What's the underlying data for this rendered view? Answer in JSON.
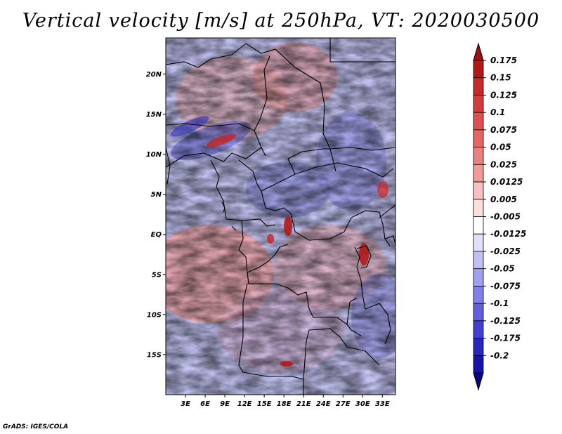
{
  "title": "Vertical velocity [m/s] at 250hPa, VT: 2020030500",
  "credit": "GrADS: IGES/COLA",
  "chart_data": {
    "type": "heatmap",
    "title": "Vertical velocity [m/s] at 250hPa, VT: 2020030500",
    "variable": "Vertical velocity",
    "units": "m/s",
    "level": "250hPa",
    "valid_time": "2020030500",
    "xlabel": "",
    "ylabel": "",
    "lon_range": [
      0,
      35
    ],
    "lat_range": [
      -20,
      24.5
    ],
    "x_ticks": [
      {
        "value": 3,
        "label": "3E"
      },
      {
        "value": 6,
        "label": "6E"
      },
      {
        "value": 9,
        "label": "9E"
      },
      {
        "value": 12,
        "label": "12E"
      },
      {
        "value": 15,
        "label": "15E"
      },
      {
        "value": 18,
        "label": "18E"
      },
      {
        "value": 21,
        "label": "21E"
      },
      {
        "value": 24,
        "label": "24E"
      },
      {
        "value": 27,
        "label": "27E"
      },
      {
        "value": 30,
        "label": "30E"
      },
      {
        "value": 33,
        "label": "33E"
      }
    ],
    "y_ticks": [
      {
        "value": 20,
        "label": "20N"
      },
      {
        "value": 15,
        "label": "15N"
      },
      {
        "value": 10,
        "label": "10N"
      },
      {
        "value": 5,
        "label": "5N"
      },
      {
        "value": 0,
        "label": "EQ"
      },
      {
        "value": -5,
        "label": "5S"
      },
      {
        "value": -10,
        "label": "10S"
      },
      {
        "value": -15,
        "label": "15S"
      }
    ],
    "colorbar": {
      "orientation": "vertical",
      "placement": "right",
      "labels": [
        "0.175",
        "0.15",
        "0.125",
        "0.1",
        "0.075",
        "0.05",
        "0.025",
        "0.0125",
        "0.005",
        "-0.005",
        "-0.0125",
        "-0.025",
        "-0.05",
        "-0.075",
        "-0.1",
        "-0.125",
        "-0.175",
        "-0.2"
      ],
      "colors": [
        "#b41919",
        "#c62a2a",
        "#d23c3c",
        "#dc5050",
        "#e66666",
        "#ec8080",
        "#f29a9a",
        "#f8c0c0",
        "#fce0e0",
        "#ffffff",
        "#e0e0fc",
        "#c0c0f4",
        "#a0a0ee",
        "#8080e6",
        "#6060de",
        "#4040d2",
        "#2828c0",
        "#1414aa",
        "#050590"
      ],
      "top_arrow_color": "#a01010",
      "bottom_arrow_color": "#05058a"
    },
    "field_summary": "Noisy small-scale alternating upward (red) and downward (blue) vertical velocity over central and southern Africa; stronger downward motion over the Sahel band near 10N-15N, stronger upward cells near the equator around 17E and 30E."
  }
}
